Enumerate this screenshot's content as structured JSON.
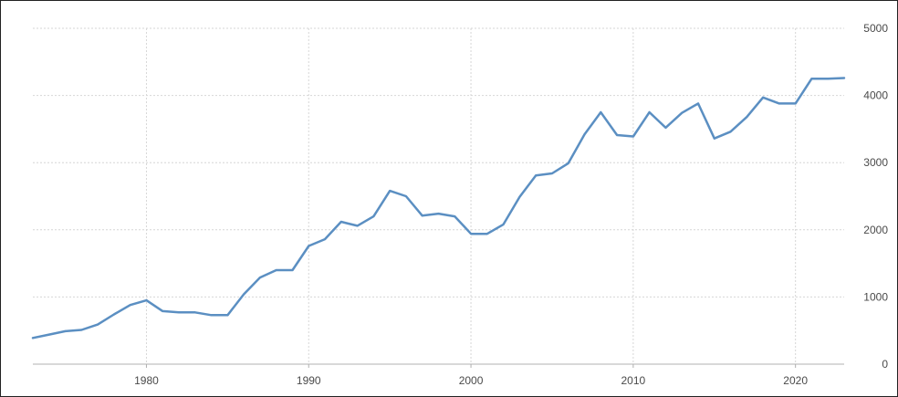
{
  "chart_data": {
    "type": "line",
    "title": "",
    "xlabel": "",
    "ylabel": "",
    "grid": true,
    "y_axis_side": "right",
    "xlim": [
      1973,
      2023
    ],
    "ylim": [
      0,
      5000
    ],
    "x_ticks": [
      1980,
      1990,
      2000,
      2010,
      2020
    ],
    "y_ticks": [
      0,
      1000,
      2000,
      3000,
      4000,
      5000
    ],
    "series": [
      {
        "color": "#5b8fc2",
        "x": [
          1973,
          1974,
          1975,
          1976,
          1977,
          1978,
          1979,
          1980,
          1981,
          1982,
          1983,
          1984,
          1985,
          1986,
          1987,
          1988,
          1989,
          1990,
          1991,
          1992,
          1993,
          1994,
          1995,
          1996,
          1997,
          1998,
          1999,
          2000,
          2001,
          2002,
          2003,
          2004,
          2005,
          2006,
          2007,
          2008,
          2009,
          2010,
          2011,
          2012,
          2013,
          2014,
          2015,
          2016,
          2017,
          2018,
          2019,
          2020,
          2021,
          2022,
          2023
        ],
        "values": [
          390,
          440,
          490,
          510,
          590,
          740,
          880,
          950,
          790,
          770,
          770,
          730,
          730,
          1040,
          1290,
          1400,
          1400,
          1760,
          1860,
          2120,
          2060,
          2200,
          2580,
          2500,
          2210,
          2240,
          2200,
          1940,
          1940,
          2080,
          2490,
          2810,
          2840,
          2990,
          3420,
          3750,
          3410,
          3390,
          3750,
          3520,
          3740,
          3880,
          3360,
          3460,
          3680,
          3970,
          3880,
          3880,
          4250,
          4250,
          4260
        ]
      }
    ]
  }
}
